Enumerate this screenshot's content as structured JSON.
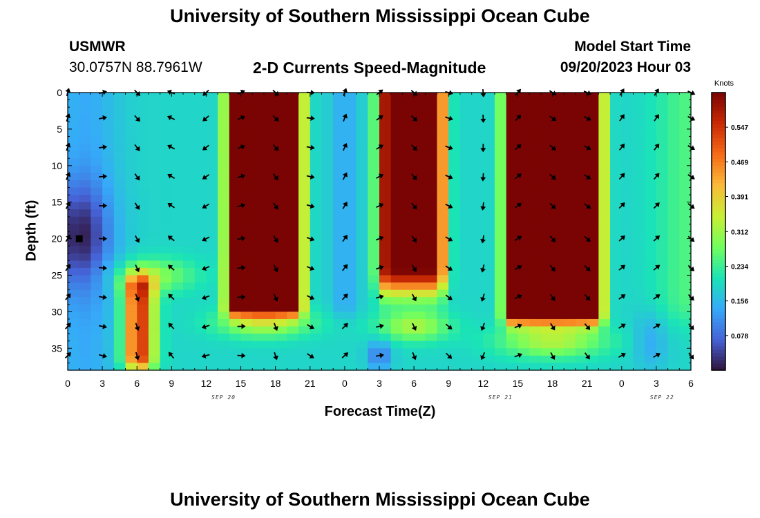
{
  "header": {
    "title": "University of Southern Mississippi Ocean Cube",
    "station": "USMWR",
    "coords": "30.0757N  88.7961W",
    "subtitle": "2-D Currents Speed-Magnitude",
    "model_start_label": "Model Start Time",
    "model_start_value": "09/20/2023 Hour 03",
    "footer_title": "University of Southern Mississippi Ocean Cube"
  },
  "chart_data": {
    "type": "heatmap",
    "title": "2-D Currents Speed-Magnitude",
    "xlabel": "Forecast Time(Z)",
    "ylabel": "Depth (ft)",
    "x_hours": [
      0,
      3,
      6,
      9,
      12,
      15,
      18,
      21,
      24,
      27,
      30,
      33,
      36,
      39,
      42,
      45,
      48,
      51,
      54
    ],
    "x_tick_labels": [
      "0",
      "3",
      "6",
      "9",
      "12",
      "15",
      "18",
      "21",
      "0",
      "3",
      "6",
      "9",
      "12",
      "15",
      "18",
      "21",
      "0",
      "3",
      "6"
    ],
    "date_labels": [
      {
        "hour": 13.5,
        "text": "SEP 20"
      },
      {
        "hour": 37.5,
        "text": "SEP 21"
      },
      {
        "hour": 51.5,
        "text": "SEP 22"
      }
    ],
    "y_ticks": [
      0,
      5,
      10,
      15,
      20,
      25,
      30,
      35
    ],
    "ylim": [
      0,
      38
    ],
    "xlim": [
      0,
      54
    ],
    "units": "Knots",
    "colorbar_ticks": [
      "0.078",
      "0.156",
      "0.234",
      "0.312",
      "0.391",
      "0.469",
      "0.547"
    ],
    "colorbar_range": [
      0.0,
      0.625
    ],
    "colors": [
      "#30123b",
      "#4662d7",
      "#36aaf9",
      "#1ae4b6",
      "#72fe5e",
      "#c8ef34",
      "#faba39",
      "#f66b19",
      "#ca2a04",
      "#7a0403"
    ],
    "arrow_depths": [
      0,
      3.5,
      7.5,
      11.5,
      15.5,
      20,
      24,
      28,
      32,
      36
    ],
    "arrow_hours": [
      0,
      3,
      6,
      9,
      12,
      15,
      18,
      21,
      24,
      27,
      30,
      33,
      36,
      39,
      42,
      45,
      48,
      51,
      54
    ],
    "marker": {
      "hour": 1,
      "depth": 20
    }
  }
}
